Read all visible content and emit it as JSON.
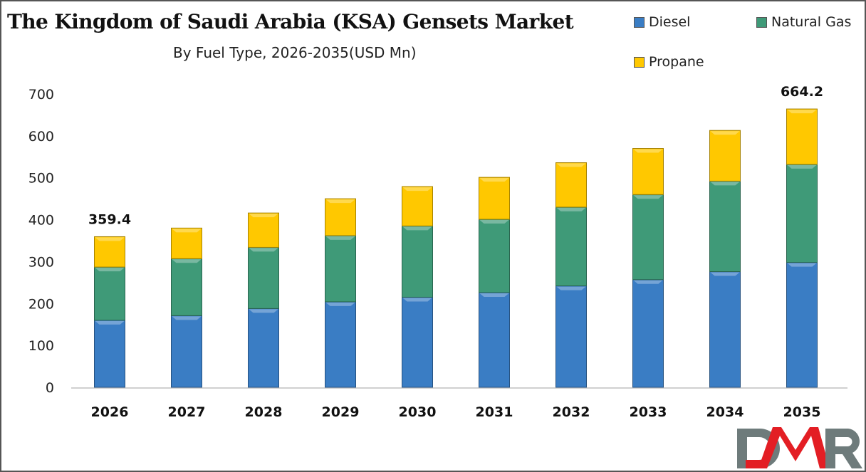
{
  "chart_data": {
    "type": "bar",
    "stacked": true,
    "title": "The Kingdom of Saudi Arabia (KSA) Gensets Market",
    "subtitle": "By Fuel Type, 2026-2035(USD Mn)",
    "xlabel": "",
    "ylabel": "",
    "ylim": [
      0,
      700
    ],
    "yticks": [
      0,
      100,
      200,
      300,
      400,
      500,
      600,
      700
    ],
    "grid": false,
    "legend_position": "top-right",
    "categories": [
      "2026",
      "2027",
      "2028",
      "2029",
      "2030",
      "2031",
      "2032",
      "2033",
      "2034",
      "2035"
    ],
    "series": [
      {
        "name": "Diesel",
        "color": "#3a7dc4",
        "values": [
          160,
          171,
          188,
          204,
          215,
          226,
          242,
          257,
          276,
          298
        ]
      },
      {
        "name": "Natural Gas",
        "color": "#3f9a78",
        "values": [
          127,
          136,
          146,
          158,
          170,
          175,
          188,
          203,
          216,
          234
        ]
      },
      {
        "name": "Propane",
        "color": "#ffc800",
        "values": [
          72.4,
          73,
          82,
          88,
          94,
          100,
          106,
          110,
          121,
          132.2
        ]
      }
    ],
    "annotations": [
      {
        "category": "2026",
        "text": "359.4"
      },
      {
        "category": "2035",
        "text": "664.2"
      }
    ]
  },
  "logo": {
    "text": "DMR",
    "colors": {
      "D": "#6e7b7b",
      "M": "#e31e24",
      "R": "#6e7b7b"
    }
  }
}
